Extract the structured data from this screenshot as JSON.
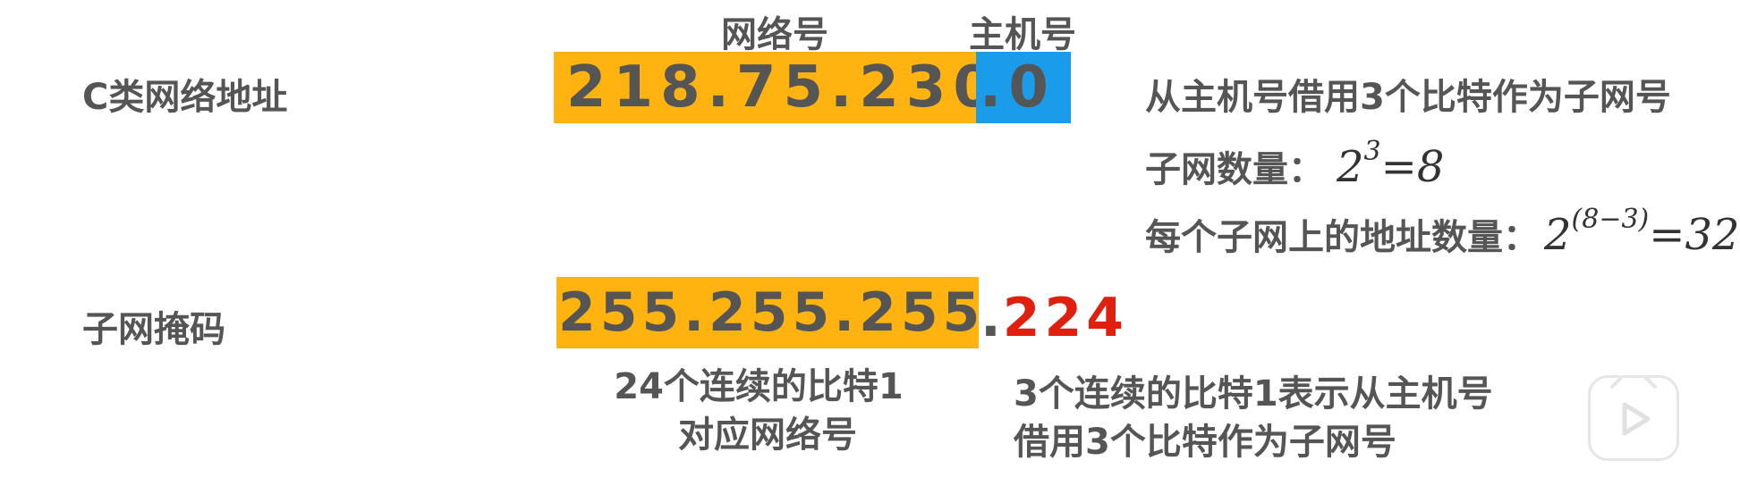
{
  "headers": {
    "network_part": "网络号",
    "host_part": "主机号"
  },
  "address": {
    "label": "C类网络地址",
    "network_text": "218.75.230",
    "host_text": ".0",
    "network_color": "#FFB310",
    "host_color": "#1A9CEA"
  },
  "mask": {
    "label": "子网掩码",
    "network_text": "255.255.255",
    "dot": ".",
    "borrowed_text": "224",
    "network_color": "#FFB310",
    "borrowed_color": "#E0200E"
  },
  "info": {
    "line1": "从主机号借用3个比特作为子网号",
    "line2_prefix": "子网数量：",
    "line2_base": "2",
    "line2_exp": "3",
    "line2_result": "=8",
    "line3_prefix": "每个子网上的地址数量：",
    "line3_base": "2",
    "line3_exp": "(8−3)",
    "line3_result": "=32"
  },
  "captions": {
    "left_line1": "24个连续的比特1",
    "left_line2": "对应网络号",
    "right_line1": "3个连续的比特1表示从主机号",
    "right_line2": "借用3个比特作为子网号"
  },
  "icons": {
    "play": "play-icon"
  }
}
